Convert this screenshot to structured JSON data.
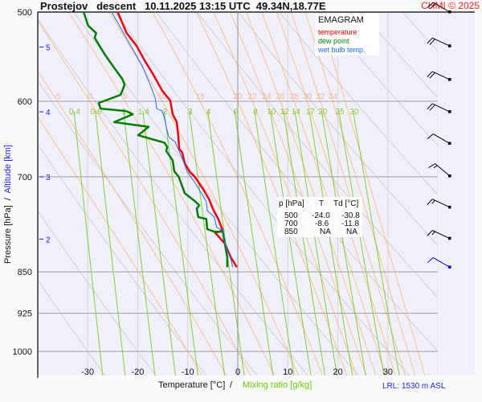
{
  "header": {
    "title": "Prostejov   descent   10.11.2025 13:15 UTC  49.34N,18.77E",
    "credit": "CHMI © 2025"
  },
  "legend": {
    "title": "EMAGRAM",
    "items": [
      {
        "label": "temperature",
        "color": "#ff0000"
      },
      {
        "label": "dew point",
        "color": "#008000"
      },
      {
        "label": "wet bulb temp.",
        "color": "#1a6aff"
      }
    ]
  },
  "table": {
    "headers": [
      "p [hPa]",
      "T",
      "Td [°C]"
    ],
    "rows": [
      [
        "500",
        "-24.0",
        "-30.8"
      ],
      [
        "700",
        "-8.6",
        "-11.8"
      ],
      [
        "850",
        "NA",
        "NA"
      ]
    ]
  },
  "footer": {
    "xlabel": "Temperature [°C]",
    "sep": "/",
    "xlabel2": "Mixing ratio [g/kg]",
    "lrl": "LRL: 1530 m ASL"
  },
  "chart_data": {
    "type": "line",
    "title": "Prostejov   descent   10.11.2025 13:15 UTC  49.34N,18.77E",
    "xlabel": "Temperature [°C]",
    "ylabel": "Pressure [hPa]",
    "ylabel2": "Altitude [km]",
    "ylabel_sep": "/",
    "xlim": [
      -40,
      40
    ],
    "ylim": [
      1050,
      500
    ],
    "y_scale": "log",
    "x_ticks": [
      "-30",
      "-20",
      "-10",
      "0",
      "10",
      "20",
      "30"
    ],
    "p_ticks": [
      "500",
      "600",
      "700",
      "850",
      "925",
      "1000"
    ],
    "altitude_ticks": [
      {
        "km": "5",
        "p": 537
      },
      {
        "km": "4",
        "p": 613
      },
      {
        "km": "3",
        "p": 700
      },
      {
        "km": "2",
        "p": 795
      }
    ],
    "theta_w_labels": [
      "-5",
      "0",
      "5",
      "10",
      "15",
      "20",
      "22",
      "24",
      "26",
      "28",
      "30",
      "32",
      "34"
    ],
    "mixing_ratio_labels": [
      "0.4",
      "0.6",
      "1",
      "1.4",
      "2",
      "3",
      "4",
      "6",
      "8",
      "10",
      "12",
      "14",
      "17",
      "20",
      "25",
      "30"
    ],
    "series": [
      {
        "name": "temperature",
        "color": "#ff0000",
        "points": [
          [
            500,
            -24.0
          ],
          [
            522,
            -22.2
          ],
          [
            536,
            -20.2
          ],
          [
            552,
            -18.6
          ],
          [
            567,
            -17.0
          ],
          [
            587,
            -15.1
          ],
          [
            599,
            -13.5
          ],
          [
            616,
            -13.0
          ],
          [
            626,
            -12.2
          ],
          [
            643,
            -11.9
          ],
          [
            661,
            -11.7
          ],
          [
            666,
            -11.1
          ],
          [
            681,
            -10.6
          ],
          [
            693,
            -9.6
          ],
          [
            700,
            -8.6
          ],
          [
            718,
            -6.9
          ],
          [
            732,
            -5.8
          ],
          [
            747,
            -5.0
          ],
          [
            763,
            -3.9
          ],
          [
            781,
            -3.0
          ],
          [
            785,
            -4.5
          ],
          [
            802,
            -2.6
          ],
          [
            825,
            -1.4
          ],
          [
            842,
            -0.2
          ]
        ]
      },
      {
        "name": "dew point",
        "color": "#008000",
        "points": [
          [
            500,
            -30.8
          ],
          [
            514,
            -29.9
          ],
          [
            522,
            -28.3
          ],
          [
            527,
            -28.6
          ],
          [
            545,
            -26.6
          ],
          [
            561,
            -24.6
          ],
          [
            573,
            -23.1
          ],
          [
            580,
            -22.6
          ],
          [
            592,
            -23.4
          ],
          [
            602,
            -27.8
          ],
          [
            609,
            -27.4
          ],
          [
            612,
            -22.3
          ],
          [
            616,
            -21.0
          ],
          [
            626,
            -24.7
          ],
          [
            632,
            -17.8
          ],
          [
            643,
            -19.9
          ],
          [
            653,
            -14.6
          ],
          [
            659,
            -14.1
          ],
          [
            664,
            -14.3
          ],
          [
            677,
            -13.0
          ],
          [
            692,
            -12.7
          ],
          [
            700,
            -11.8
          ],
          [
            724,
            -10.6
          ],
          [
            736,
            -8.5
          ],
          [
            742,
            -7.7
          ],
          [
            747,
            -8.2
          ],
          [
            760,
            -7.9
          ],
          [
            763,
            -6.3
          ],
          [
            779,
            -6.1
          ],
          [
            783,
            -4.7
          ],
          [
            783,
            -3.0
          ],
          [
            802,
            -2.6
          ],
          [
            825,
            -2.1
          ],
          [
            842,
            -2.1
          ]
        ]
      },
      {
        "name": "wet bulb temp.",
        "color": "#1a6aff",
        "points": [
          [
            500,
            -25.2
          ],
          [
            527,
            -22.3
          ],
          [
            558,
            -19.1
          ],
          [
            580,
            -17.5
          ],
          [
            596,
            -16.5
          ],
          [
            609,
            -16.2
          ],
          [
            612,
            -15.1
          ],
          [
            622,
            -14.6
          ],
          [
            632,
            -14.3
          ],
          [
            645,
            -13.8
          ],
          [
            652,
            -12.5
          ],
          [
            674,
            -11.1
          ],
          [
            693,
            -10.1
          ],
          [
            709,
            -8.5
          ],
          [
            736,
            -6.3
          ],
          [
            750,
            -6.1
          ],
          [
            760,
            -4.7
          ],
          [
            776,
            -4.2
          ],
          [
            781,
            -3.0
          ],
          [
            802,
            -2.6
          ],
          [
            828,
            -1.4
          ],
          [
            842,
            -1.0
          ]
        ]
      }
    ],
    "wind": [
      {
        "p": 500,
        "dir_deg": 300,
        "speed_kt": 20
      },
      {
        "p": 536,
        "dir_deg": 295,
        "speed_kt": 20
      },
      {
        "p": 574,
        "dir_deg": 295,
        "speed_kt": 20
      },
      {
        "p": 613,
        "dir_deg": 295,
        "speed_kt": 20
      },
      {
        "p": 654,
        "dir_deg": 300,
        "speed_kt": 10
      },
      {
        "p": 699,
        "dir_deg": 310,
        "speed_kt": 15
      },
      {
        "p": 745,
        "dir_deg": 295,
        "speed_kt": 15
      },
      {
        "p": 794,
        "dir_deg": 295,
        "speed_kt": 15
      },
      {
        "p": 842,
        "dir_deg": 300,
        "speed_kt": 10,
        "color": "#0000ff"
      }
    ],
    "grid": true,
    "legend_position": "top-right"
  }
}
